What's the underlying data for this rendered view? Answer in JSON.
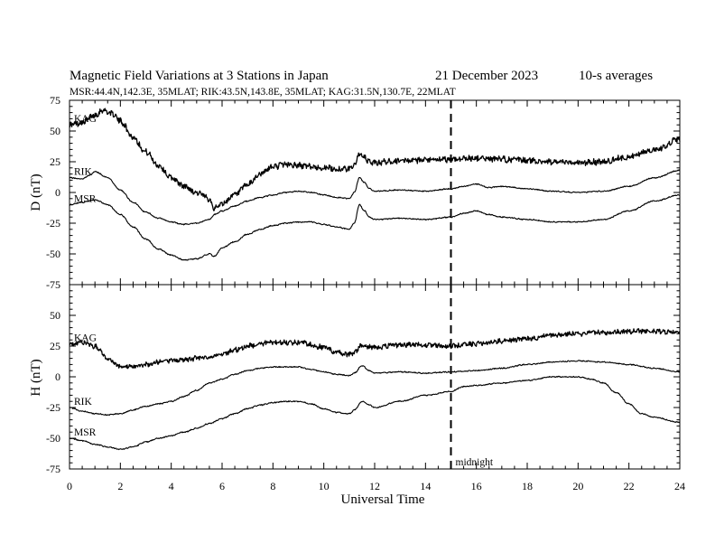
{
  "header": {
    "title": "Magnetic Field Variations at 3 Stations in Japan",
    "date": "21 December 2023",
    "averaging": "10-s averages",
    "stations": "MSR:44.4N,142.3E, 35MLAT;  RIK:43.5N,143.8E, 35MLAT;  KAG:31.5N,130.7E, 22MLAT"
  },
  "chart_data": [
    {
      "type": "line",
      "ylabel": "D (nT)",
      "ylim": [
        -75,
        75
      ],
      "yticks": [
        75,
        50,
        25,
        0,
        -25,
        -50,
        -75
      ],
      "xlim": [
        0,
        24
      ],
      "marker": {
        "x": 15,
        "label": ""
      },
      "series": [
        {
          "name": "KAG",
          "noise": 2.2,
          "x": [
            0,
            0.5,
            1,
            1.3,
            1.7,
            2,
            2.5,
            3,
            3.5,
            4,
            4.5,
            5,
            5.5,
            5.7,
            6,
            6.5,
            7,
            7.5,
            8,
            8.5,
            9,
            9.5,
            10,
            10.5,
            11,
            11.2,
            11.4,
            11.6,
            11.8,
            12,
            12.5,
            13,
            14,
            15,
            16,
            17,
            18,
            19,
            20,
            21,
            22,
            23,
            24
          ],
          "y": [
            55,
            57,
            63,
            67,
            64,
            58,
            45,
            33,
            22,
            12,
            5,
            0,
            -5,
            -13,
            -9,
            -2,
            6,
            15,
            21,
            23,
            22,
            21,
            20,
            19,
            19,
            23,
            31,
            28,
            25,
            24,
            25,
            26,
            26,
            27,
            28,
            27,
            26,
            25,
            24,
            25,
            29,
            35,
            43
          ]
        },
        {
          "name": "RIK",
          "noise": 0.4,
          "x": [
            0,
            0.5,
            0.8,
            1,
            1.5,
            2,
            2.5,
            3,
            3.5,
            4,
            4.5,
            5,
            5.5,
            5.7,
            6,
            6.5,
            7,
            7.5,
            8,
            8.5,
            9,
            9.5,
            10,
            10.5,
            11,
            11.2,
            11.4,
            11.6,
            11.8,
            12,
            13,
            14,
            15,
            15.5,
            16,
            16.5,
            17,
            18,
            19,
            20,
            21,
            22,
            23,
            24
          ],
          "y": [
            12,
            11,
            14,
            17,
            12,
            2,
            -8,
            -16,
            -21,
            -24,
            -26,
            -25,
            -22,
            -18,
            -15,
            -11,
            -7,
            -4,
            -2,
            0,
            1,
            0,
            -2,
            -4,
            -5,
            0,
            12,
            8,
            3,
            1,
            2,
            1,
            3,
            5,
            7,
            4,
            5,
            3,
            1,
            0,
            1,
            5,
            12,
            18
          ]
        },
        {
          "name": "MSR",
          "noise": 0.4,
          "x": [
            0,
            0.5,
            1,
            1.5,
            2,
            2.5,
            3,
            3.5,
            4,
            4.5,
            5,
            5.5,
            5.7,
            6,
            6.5,
            7,
            7.5,
            8,
            8.5,
            9,
            9.5,
            10,
            10.5,
            11,
            11.2,
            11.4,
            11.6,
            11.8,
            12,
            13,
            14,
            15,
            15.5,
            16,
            16.5,
            17,
            18,
            19,
            20,
            21,
            22,
            23,
            24
          ],
          "y": [
            -10,
            -8,
            -6,
            -10,
            -18,
            -28,
            -38,
            -46,
            -51,
            -55,
            -54,
            -50,
            -52,
            -45,
            -40,
            -34,
            -30,
            -27,
            -25,
            -24,
            -24,
            -26,
            -28,
            -30,
            -25,
            -10,
            -15,
            -20,
            -22,
            -21,
            -22,
            -20,
            -17,
            -15,
            -18,
            -20,
            -22,
            -24,
            -24,
            -22,
            -15,
            -7,
            -2
          ]
        }
      ]
    },
    {
      "type": "line",
      "ylabel": "H (nT)",
      "xlabel": "Universal Time",
      "ylim": [
        -75,
        75
      ],
      "yticks": [
        50,
        25,
        0,
        -25,
        -50,
        -75
      ],
      "xlim": [
        0,
        24
      ],
      "xticks": [
        0,
        2,
        4,
        6,
        8,
        10,
        12,
        14,
        16,
        18,
        20,
        22,
        24
      ],
      "marker": {
        "x": 15,
        "label": "midnight"
      },
      "series": [
        {
          "name": "KAG",
          "noise": 1.8,
          "x": [
            0,
            0.5,
            1,
            1.5,
            2,
            2.5,
            3,
            3.5,
            4,
            4.5,
            5,
            5.5,
            6,
            6.5,
            7,
            8,
            9,
            10,
            10.5,
            11,
            11.2,
            11.5,
            11.8,
            12,
            13,
            14,
            15,
            16,
            17,
            18,
            19,
            20,
            21,
            22,
            23,
            24
          ],
          "y": [
            27,
            28,
            25,
            15,
            9,
            8,
            10,
            12,
            13,
            14,
            15,
            16,
            18,
            22,
            25,
            28,
            28,
            24,
            20,
            18,
            20,
            26,
            24,
            24,
            26,
            26,
            25,
            27,
            29,
            31,
            34,
            35,
            36,
            37,
            37,
            36
          ]
        },
        {
          "name": "RIK",
          "noise": 0.4,
          "x": [
            0,
            0.5,
            1,
            1.5,
            2,
            2.5,
            3,
            3.5,
            4,
            4.5,
            5,
            5.5,
            6,
            6.5,
            7,
            7.5,
            8,
            8.5,
            9,
            9.5,
            10,
            10.5,
            11,
            11.2,
            11.5,
            11.8,
            12,
            13,
            14,
            15,
            16,
            17,
            18,
            19,
            20,
            21,
            22,
            23,
            24
          ],
          "y": [
            -25,
            -28,
            -30,
            -31,
            -30,
            -27,
            -24,
            -22,
            -20,
            -16,
            -11,
            -5,
            -2,
            2,
            5,
            7,
            8,
            8,
            8,
            6,
            4,
            2,
            1,
            3,
            9,
            5,
            3,
            4,
            3,
            4,
            5,
            7,
            10,
            12,
            13,
            12,
            10,
            7,
            4
          ]
        },
        {
          "name": "MSR",
          "noise": 0.4,
          "x": [
            0,
            0.5,
            1,
            1.5,
            2,
            2.5,
            3,
            3.5,
            4,
            4.5,
            5,
            5.5,
            6,
            6.5,
            7,
            7.5,
            8,
            8.5,
            9,
            9.5,
            10,
            10.5,
            11,
            11.2,
            11.5,
            11.8,
            12,
            13,
            14,
            15,
            15.5,
            16,
            17,
            18,
            19,
            20,
            20.5,
            21,
            21.5,
            22,
            22.5,
            23,
            24
          ],
          "y": [
            -50,
            -52,
            -55,
            -57,
            -59,
            -57,
            -53,
            -50,
            -48,
            -45,
            -42,
            -38,
            -34,
            -30,
            -26,
            -23,
            -21,
            -20,
            -20,
            -22,
            -26,
            -29,
            -30,
            -27,
            -20,
            -23,
            -25,
            -20,
            -15,
            -12,
            -8,
            -7,
            -5,
            -3,
            0,
            0,
            -2,
            -5,
            -13,
            -22,
            -30,
            -33,
            -37
          ]
        }
      ]
    }
  ]
}
